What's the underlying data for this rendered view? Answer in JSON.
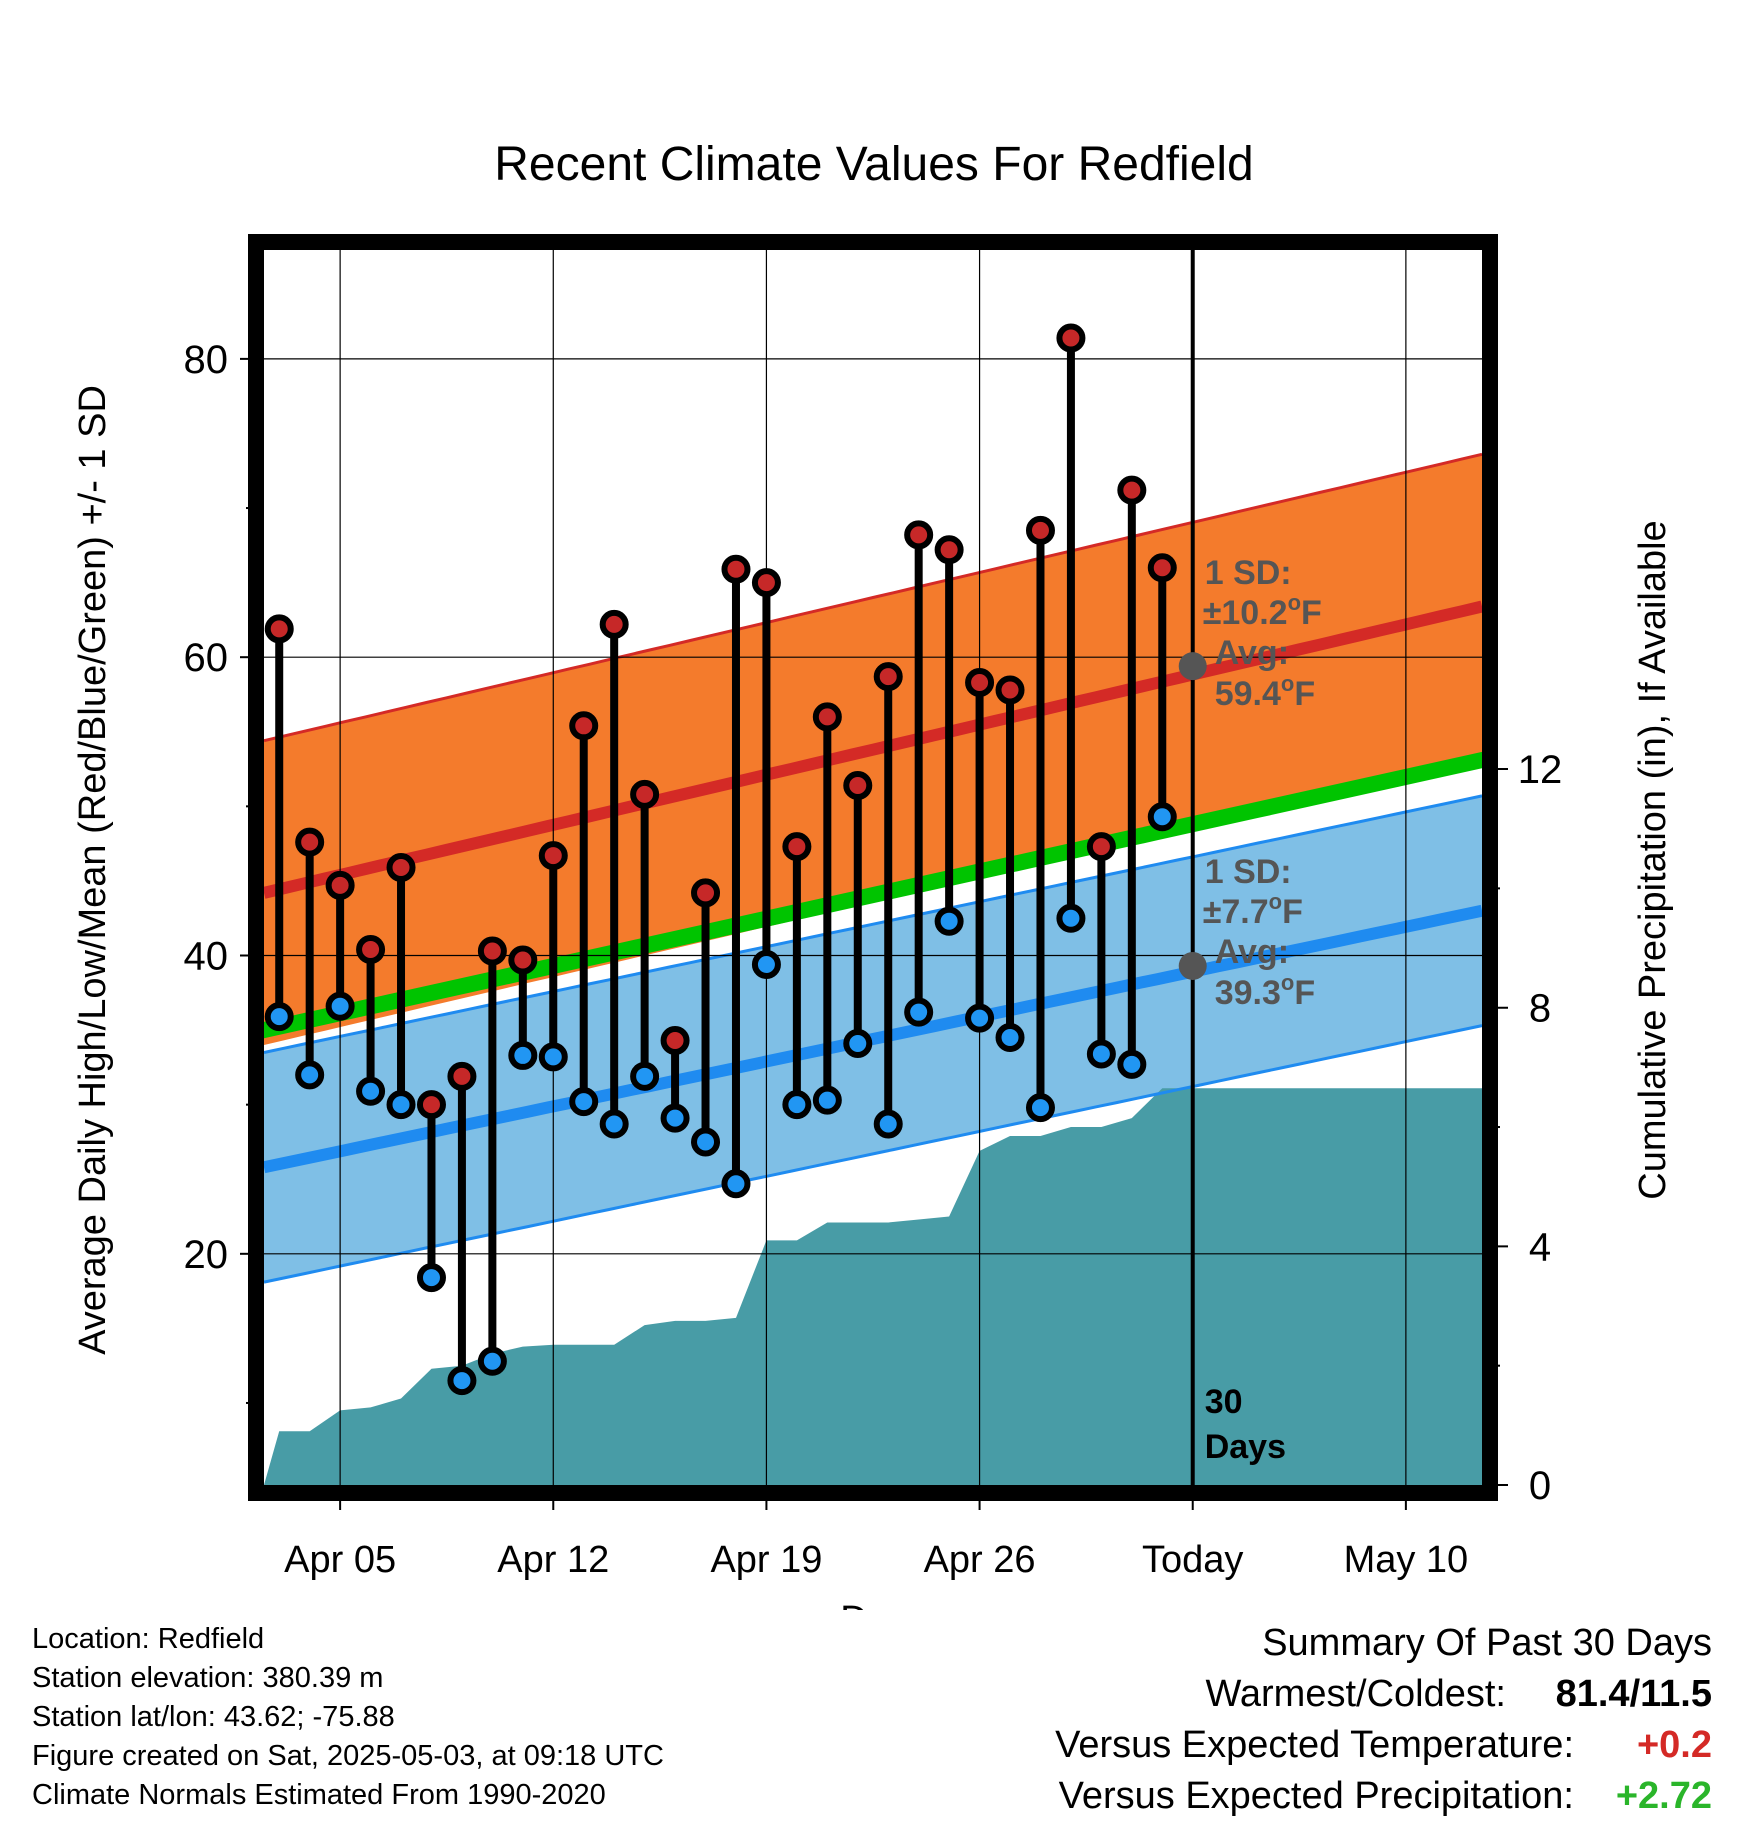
{
  "chart_data": {
    "type": "line",
    "title": "Recent Climate Values For Redfield",
    "xlabel": "Day",
    "ylabel": "Average Daily High/Low/Mean (Red/Blue/Green) +/- 1 SD",
    "y2label": "Cumulative Precipitation (in), If Available",
    "ylim": [
      4.5,
      87.3
    ],
    "y2lim": [
      0,
      20.7
    ],
    "y_ticks": [
      20,
      40,
      60,
      80
    ],
    "y2_ticks": [
      0,
      4,
      8,
      12
    ],
    "x_tick_labels": [
      {
        "day": 5,
        "label": "Apr 05"
      },
      {
        "day": 12,
        "label": "Apr 12"
      },
      {
        "day": 19,
        "label": "Apr 19"
      },
      {
        "day": 26,
        "label": "Apr 26"
      },
      {
        "day": 33,
        "label": "Today"
      },
      {
        "day": 40,
        "label": "May 10"
      }
    ],
    "grid": true,
    "days": [
      3,
      4,
      5,
      6,
      7,
      8,
      9,
      10,
      11,
      12,
      13,
      14,
      15,
      16,
      17,
      18,
      19,
      20,
      21,
      22,
      23,
      24,
      25,
      26,
      27,
      28,
      29,
      30,
      31,
      32
    ],
    "highs": [
      61.9,
      47.6,
      44.7,
      40.4,
      45.9,
      30.0,
      31.9,
      40.3,
      39.7,
      46.7,
      55.4,
      62.2,
      50.8,
      34.3,
      44.2,
      65.9,
      65.0,
      47.3,
      56.0,
      51.4,
      58.7,
      68.2,
      67.2,
      58.3,
      57.8,
      68.5,
      81.4,
      47.3,
      71.2,
      66.0
    ],
    "lows": [
      35.9,
      32.0,
      36.6,
      30.9,
      30.0,
      18.4,
      11.5,
      12.8,
      33.3,
      33.2,
      30.2,
      28.7,
      31.9,
      29.1,
      27.5,
      24.7,
      39.4,
      30.0,
      30.3,
      34.1,
      28.7,
      36.2,
      42.3,
      35.8,
      34.5,
      29.8,
      42.5,
      33.4,
      32.7,
      49.3
    ],
    "normals": {
      "x_range": [
        2.5,
        42.5
      ],
      "avg_high": [
        44.2,
        63.4
      ],
      "high_sd": 10.2,
      "avg_low": [
        25.8,
        43.0
      ],
      "low_sd": 7.7,
      "avg_mean": [
        35.0,
        53.1
      ]
    },
    "precip_cumulative": [
      [
        2.5,
        0
      ],
      [
        3.0,
        0.9
      ],
      [
        4.0,
        0.9
      ],
      [
        5.0,
        1.25
      ],
      [
        6.0,
        1.3
      ],
      [
        7.0,
        1.45
      ],
      [
        8.0,
        1.95
      ],
      [
        9.0,
        2.0
      ],
      [
        10.0,
        2.2
      ],
      [
        11.0,
        2.32
      ],
      [
        12.0,
        2.35
      ],
      [
        13.0,
        2.35
      ],
      [
        14.0,
        2.35
      ],
      [
        15.0,
        2.68
      ],
      [
        16.0,
        2.75
      ],
      [
        17.0,
        2.75
      ],
      [
        18.0,
        2.8
      ],
      [
        19.0,
        4.1
      ],
      [
        20.0,
        4.1
      ],
      [
        21.0,
        4.4
      ],
      [
        22.0,
        4.4
      ],
      [
        23.0,
        4.4
      ],
      [
        24.0,
        4.45
      ],
      [
        25.0,
        4.5
      ],
      [
        26.0,
        5.6
      ],
      [
        27.0,
        5.85
      ],
      [
        28.0,
        5.85
      ],
      [
        29.0,
        6.0
      ],
      [
        30.0,
        6.0
      ],
      [
        31.0,
        6.15
      ],
      [
        32.0,
        6.65
      ],
      [
        33.0,
        6.65
      ],
      [
        42.5,
        6.65
      ]
    ],
    "today_day": 33,
    "annotations": {
      "high": {
        "line1": "1 SD:",
        "line2": "±10.2",
        "deg": "o",
        "unit": "F",
        "line3": "Avg:",
        "line4": "59.4",
        "value_sd": 10.2,
        "value_avg": 59.4
      },
      "low": {
        "line1": "1 SD:",
        "line2": "±7.7",
        "deg": "o",
        "unit": "F",
        "line3": "Avg:",
        "line4": "39.3",
        "value_sd": 7.7,
        "value_avg": 39.3
      },
      "days": {
        "line1": "30",
        "line2": "Days"
      }
    },
    "colors": {
      "high_band": "#f47b2c",
      "high_line": "#d42a26",
      "low_band": "#7fbfe6",
      "low_line": "#1f8bf0",
      "mean_band": "#00c400",
      "precip": "#489ca6",
      "high_dot": "#c62828",
      "low_dot": "#2196f3",
      "annotation": "#555555"
    }
  },
  "info": {
    "location": "Location: Redfield",
    "elevation": "Station elevation: 380.39 m",
    "latlon": "Station lat/lon: 43.62; -75.88",
    "created": "Figure created on Sat, 2025-05-03, at 09:18 UTC",
    "normals": "Climate Normals Estimated From 1990-2020"
  },
  "summary": {
    "title": "Summary Of Past 30 Days",
    "warm_label": "Warmest/Coldest:",
    "warm_value": "81.4/11.5",
    "temp_label": "Versus Expected Temperature:",
    "temp_value": "+0.2",
    "temp_color": "#d42a26",
    "precip_label": "Versus Expected Precipitation:",
    "precip_value": "+2.72",
    "precip_color": "#2ab52a"
  }
}
